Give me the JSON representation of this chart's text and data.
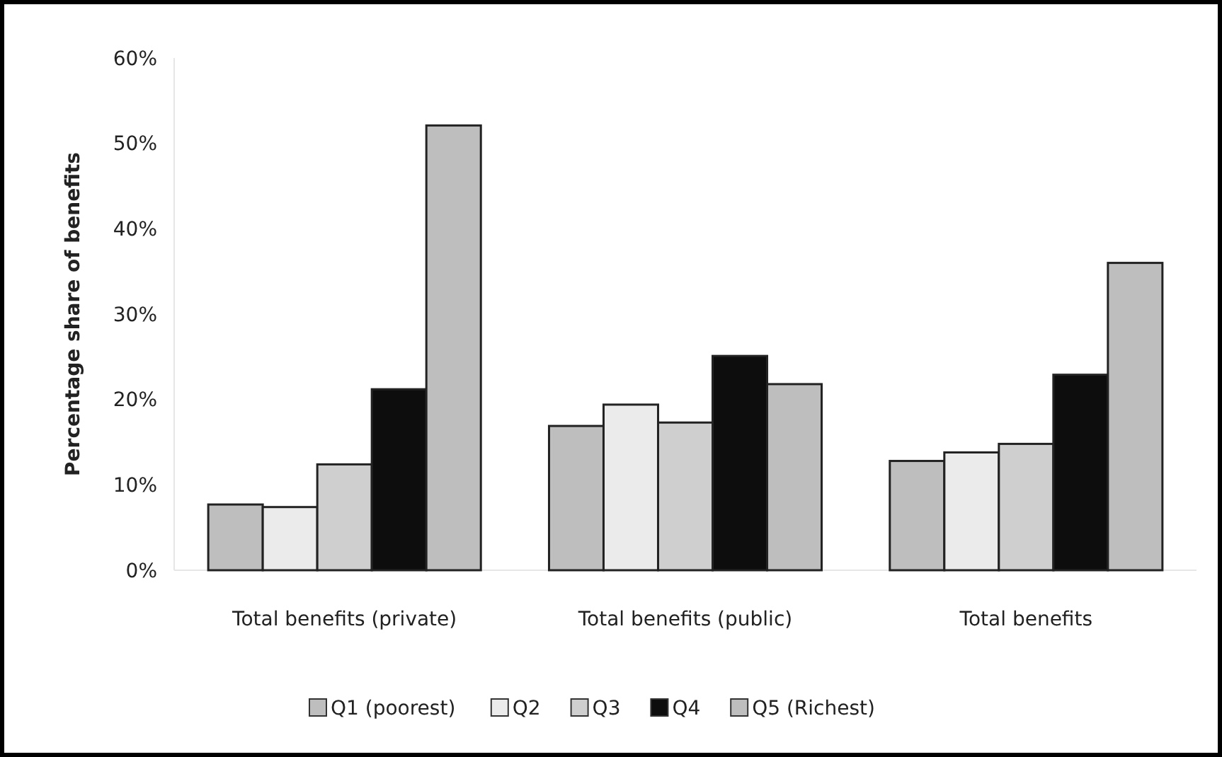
{
  "chart_data": {
    "type": "bar",
    "ylabel": "Percentage share of benefits",
    "categories": [
      "Total benefits (private)",
      "Total benefits (public)",
      "Total benefits"
    ],
    "series": [
      {
        "name": "Q1 (poorest)",
        "color": "#bebebe",
        "values": [
          7.7,
          16.9,
          12.8
        ]
      },
      {
        "name": "Q2",
        "color": "#ebebeb",
        "values": [
          7.4,
          19.4,
          13.8
        ]
      },
      {
        "name": "Q3",
        "color": "#cfcfcf",
        "values": [
          12.4,
          17.3,
          14.8
        ]
      },
      {
        "name": "Q4",
        "color": "#0d0d0d",
        "values": [
          21.2,
          25.1,
          22.9
        ]
      },
      {
        "name": "Q5 (Richest)",
        "color": "#bebebe",
        "values": [
          52.1,
          21.8,
          36.0
        ]
      }
    ],
    "ylim": [
      0,
      60
    ],
    "yticks": [
      {
        "value": 0,
        "label": "0%"
      },
      {
        "value": 10,
        "label": "10%"
      },
      {
        "value": 20,
        "label": "20%"
      },
      {
        "value": 30,
        "label": "30%"
      },
      {
        "value": 40,
        "label": "40%"
      },
      {
        "value": 50,
        "label": "50%"
      },
      {
        "value": 60,
        "label": "60%"
      }
    ],
    "grid": false,
    "legend": "bottom"
  }
}
